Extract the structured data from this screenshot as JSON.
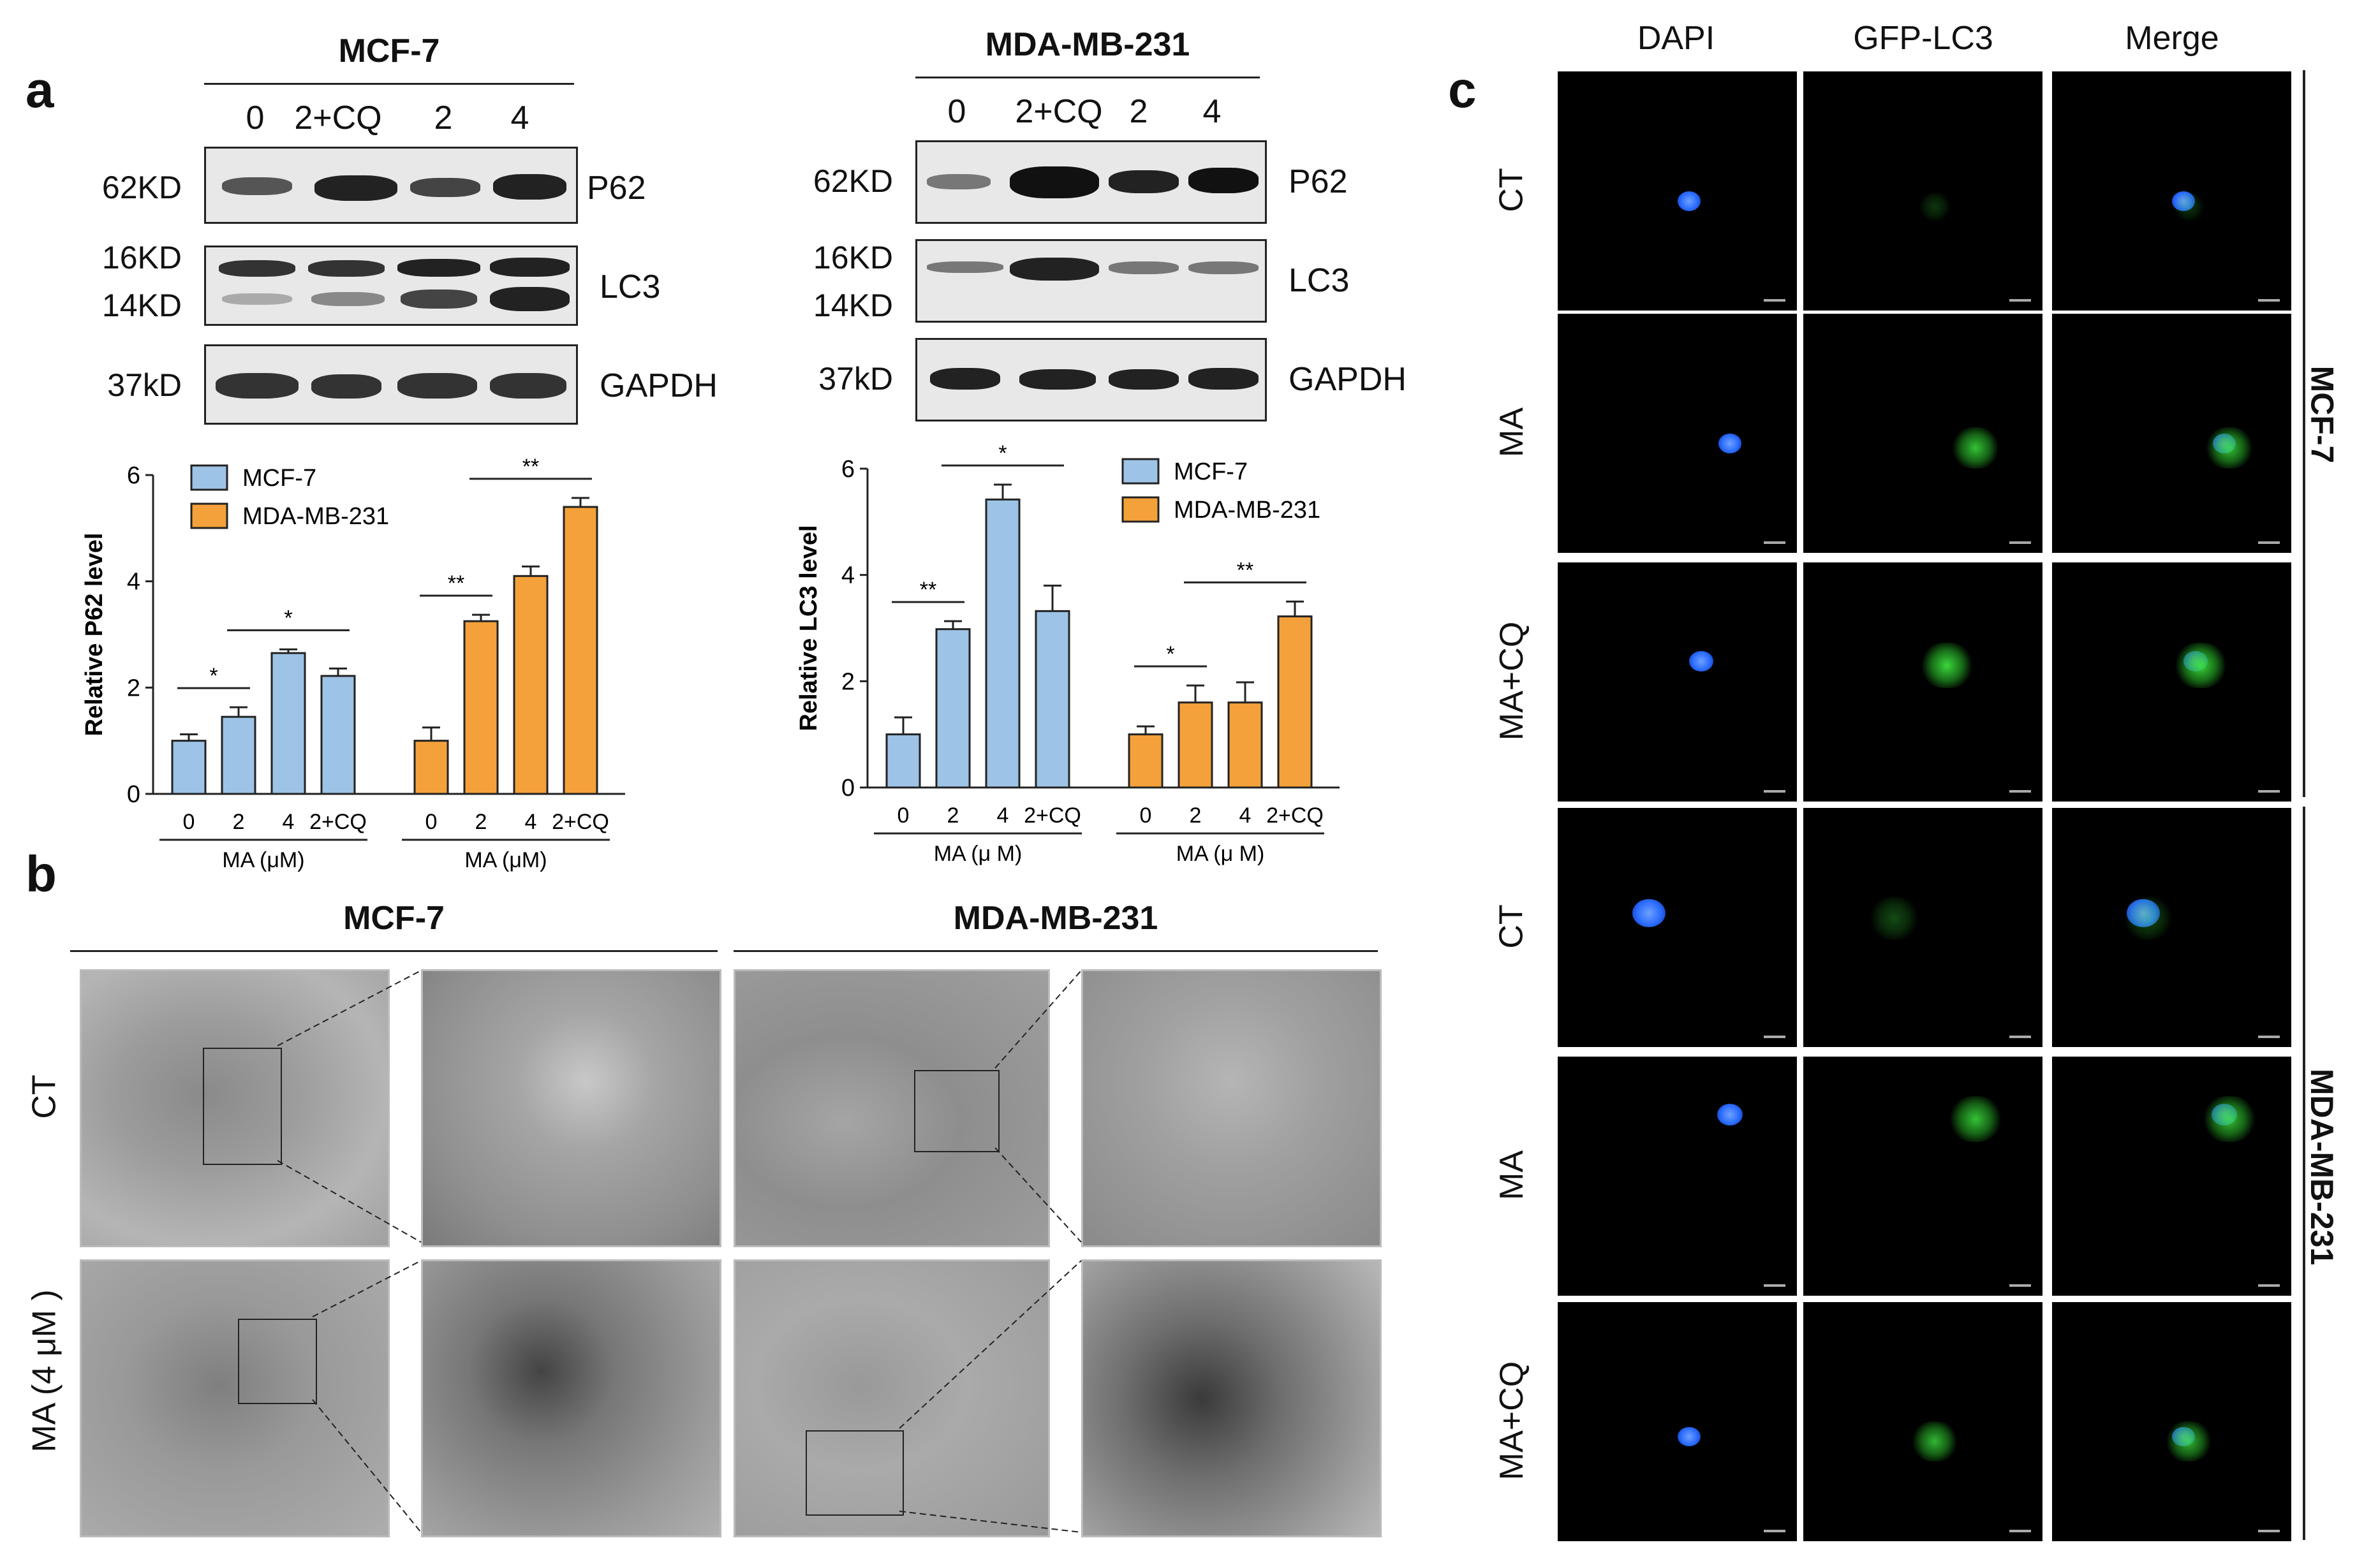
{
  "panel_a": {
    "label": "a",
    "mcf7_title": "MCF-7",
    "mda_title": "MDA-MB-231",
    "lanes": [
      "0",
      "2+CQ",
      "2",
      "4"
    ],
    "mcf7_kd": {
      "p62": "62KD",
      "lc3_upper": "16KD",
      "lc3_lower": "14KD",
      "gapdh": "37kD"
    },
    "mda_kd": {
      "p62": "62KD",
      "lc3_upper": "16KD",
      "lc3_lower": "14KD",
      "gapdh": "37kD"
    },
    "proteins": {
      "p62": "P62",
      "lc3": "LC3",
      "gapdh": "GAPDH"
    }
  },
  "panel_b": {
    "label": "b",
    "mcf7_title": "MCF-7",
    "mda_title": "MDA-MB-231",
    "row_ct": "CT",
    "row_ma": "MA (4 μM )"
  },
  "panel_c": {
    "label": "c",
    "columns": [
      "DAPI",
      "GFP-LC3",
      "Merge"
    ],
    "rows": [
      "CT",
      "MA",
      "MA+CQ",
      "CT",
      "MA",
      "MA+CQ"
    ],
    "group_mcf7": "MCF-7",
    "group_mda": "MDA-MB-231"
  },
  "colors": {
    "mcf7": "#9dc3e6",
    "mda": "#f4a13b",
    "dapi": "#2a6cff",
    "gfp": "#3ee23e"
  },
  "chart_data": [
    {
      "type": "bar",
      "ylabel": "Relative P62 level",
      "ylim": [
        0,
        6
      ],
      "yticks": [
        "0",
        "2",
        "4",
        "6"
      ],
      "legend": [
        "MCF-7",
        "MDA-MB-231"
      ],
      "legend_position": "top-left",
      "xlabel_group": "MA (μM)",
      "series": [
        {
          "name": "MCF-7",
          "categories": [
            "0",
            "2",
            "4",
            "2+CQ"
          ],
          "values": [
            1.0,
            1.45,
            2.65,
            2.22
          ],
          "errors": [
            0.12,
            0.18,
            0.07,
            0.14
          ]
        },
        {
          "name": "MDA-MB-231",
          "categories": [
            "0",
            "2",
            "4",
            "2+CQ"
          ],
          "values": [
            1.0,
            3.25,
            4.1,
            5.4
          ],
          "errors": [
            0.25,
            0.12,
            0.18,
            0.17
          ]
        }
      ],
      "significance": [
        {
          "series": 0,
          "from": 0,
          "to": 1,
          "label": "*"
        },
        {
          "series": 0,
          "from": 1,
          "to": 3,
          "label": "*"
        },
        {
          "series": 1,
          "from": 0,
          "to": 1,
          "label": "**"
        },
        {
          "series": 1,
          "from": 1,
          "to": 3,
          "label": "**"
        }
      ]
    },
    {
      "type": "bar",
      "ylabel": "Relative LC3 level",
      "ylim": [
        0,
        6
      ],
      "yticks": [
        "0",
        "2",
        "4",
        "6"
      ],
      "legend": [
        "MCF-7",
        "MDA-MB-231"
      ],
      "legend_position": "top-right",
      "xlabel_group": "MA (μ M)",
      "series": [
        {
          "name": "MCF-7",
          "categories": [
            "0",
            "2",
            "4",
            "2+CQ"
          ],
          "values": [
            1.0,
            2.98,
            5.42,
            3.32
          ],
          "errors": [
            0.32,
            0.15,
            0.28,
            0.48
          ]
        },
        {
          "name": "MDA-MB-231",
          "categories": [
            "0",
            "2",
            "4",
            "2+CQ"
          ],
          "values": [
            1.0,
            1.6,
            1.6,
            3.22
          ],
          "errors": [
            0.15,
            0.32,
            0.38,
            0.28
          ]
        }
      ],
      "significance": [
        {
          "series": 0,
          "from": 0,
          "to": 1,
          "label": "**"
        },
        {
          "series": 0,
          "from": 1,
          "to": 3,
          "label": "*"
        },
        {
          "series": 1,
          "from": 0,
          "to": 1,
          "label": "*"
        },
        {
          "series": 1,
          "from": 1,
          "to": 3,
          "label": "**"
        }
      ]
    }
  ]
}
